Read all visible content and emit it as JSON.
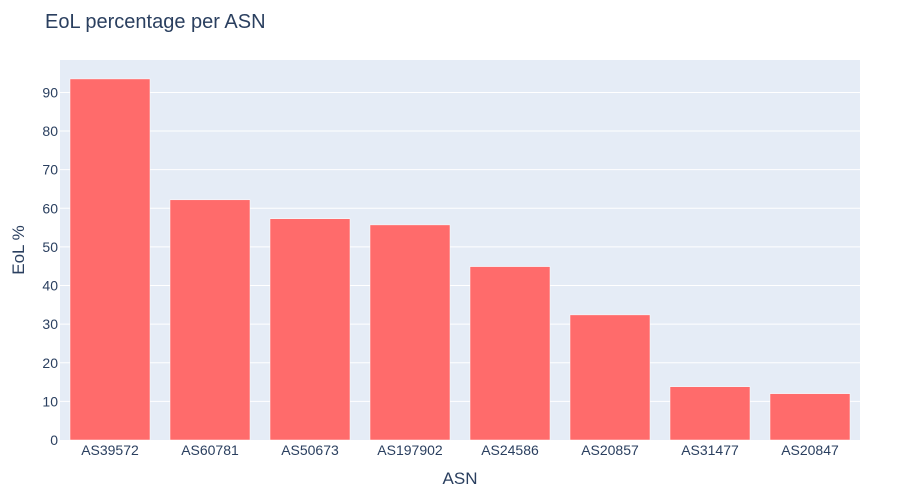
{
  "chart_data": {
    "type": "bar",
    "title": "EoL percentage per ASN",
    "xlabel": "ASN",
    "ylabel": "EoL %",
    "categories": [
      "AS39572",
      "AS60781",
      "AS50673",
      "AS197902",
      "AS24586",
      "AS20857",
      "AS31477",
      "AS20847"
    ],
    "values": [
      93.5,
      62.2,
      57.3,
      55.7,
      44.9,
      32.4,
      13.8,
      12.0
    ],
    "ylim": [
      0,
      98.4
    ],
    "yticks": [
      0,
      10,
      20,
      30,
      40,
      50,
      60,
      70,
      80,
      90
    ],
    "grid": true,
    "legend": "none",
    "bar_color": "#ff6b6b",
    "plot_bg": "#e5ecf6",
    "grid_color": "#ffffff",
    "text_color": "#2a3f5f"
  }
}
